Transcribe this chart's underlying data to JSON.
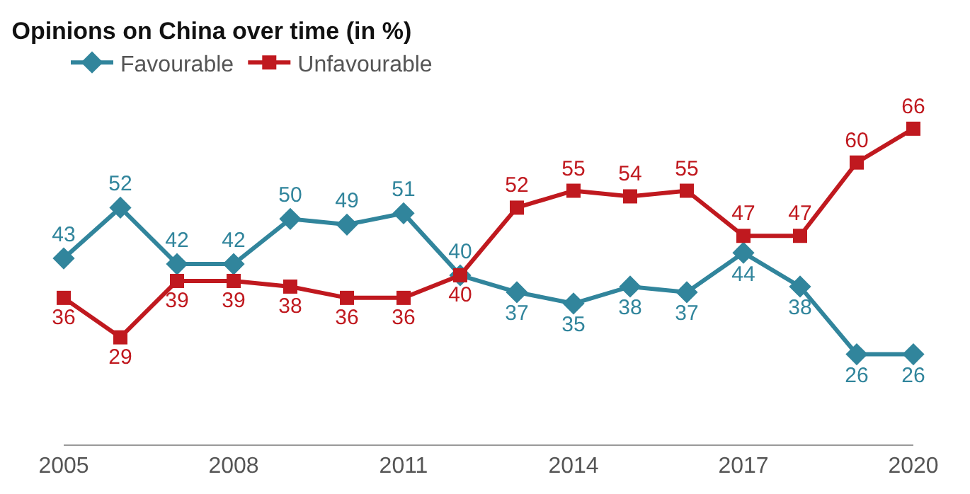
{
  "chart_data": {
    "type": "line",
    "title": "Opinions on China over time (in %)",
    "x": [
      2005,
      2006,
      2007,
      2008,
      2009,
      2010,
      2011,
      2012,
      2013,
      2014,
      2015,
      2016,
      2017,
      2018,
      2019,
      2020
    ],
    "series": [
      {
        "name": "Favourable",
        "color": "#31859c",
        "marker": "diamond",
        "values": [
          43,
          52,
          42,
          42,
          50,
          49,
          51,
          40,
          37,
          35,
          38,
          37,
          44,
          38,
          26,
          26
        ]
      },
      {
        "name": "Unfavourable",
        "color": "#c0191f",
        "marker": "square",
        "values": [
          36,
          29,
          39,
          39,
          38,
          36,
          36,
          40,
          52,
          55,
          54,
          55,
          47,
          47,
          60,
          66
        ]
      }
    ],
    "xlim": [
      2005,
      2020
    ],
    "xticks": [
      2005,
      2008,
      2011,
      2014,
      2017,
      2020
    ],
    "tick_labels": "x",
    "data_labels": true,
    "legend": "top left",
    "line_style": "solid"
  }
}
